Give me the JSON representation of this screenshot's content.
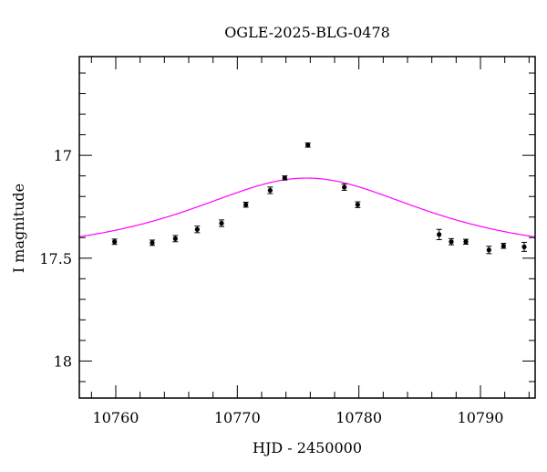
{
  "chart_data": {
    "type": "scatter",
    "title": "OGLE-2025-BLG-0478",
    "xlabel": "HJD - 2450000",
    "ylabel": "I magnitude",
    "xlim": [
      10757,
      10794.5
    ],
    "ylim": [
      18.18,
      16.52
    ],
    "y_inverted": true,
    "x_ticks": [
      10760,
      10770,
      10780,
      10790
    ],
    "x_tick_labels": [
      "10760",
      "10770",
      "10780",
      "10790"
    ],
    "y_ticks": [
      17,
      17.5,
      18
    ],
    "y_tick_labels": [
      "17",
      "17.5",
      "18"
    ],
    "grid": false,
    "colors": {
      "model": "#ff00ff",
      "points": "#000000",
      "frame": "#000000"
    },
    "series": [
      {
        "kind": "points",
        "x": [
          10759.9,
          10763.0,
          10764.9,
          10766.7,
          10768.7,
          10770.7,
          10772.7,
          10773.9,
          10775.8,
          10778.8,
          10779.9,
          10786.6,
          10787.6,
          10788.8,
          10790.7,
          10791.9,
          10793.6
        ],
        "y": [
          17.42,
          17.425,
          17.405,
          17.36,
          17.33,
          17.24,
          17.17,
          17.11,
          16.95,
          17.155,
          17.24,
          17.385,
          17.42,
          17.42,
          17.46,
          17.44,
          17.445
        ],
        "yerr": [
          0.013,
          0.013,
          0.015,
          0.016,
          0.016,
          0.012,
          0.016,
          0.01,
          0.01,
          0.015,
          0.014,
          0.025,
          0.015,
          0.012,
          0.018,
          0.012,
          0.022
        ]
      },
      {
        "kind": "model",
        "model": {
          "t0": 10775.7,
          "u0": 0.92,
          "tE": 12.0,
          "baseline": 17.48
        }
      }
    ]
  }
}
